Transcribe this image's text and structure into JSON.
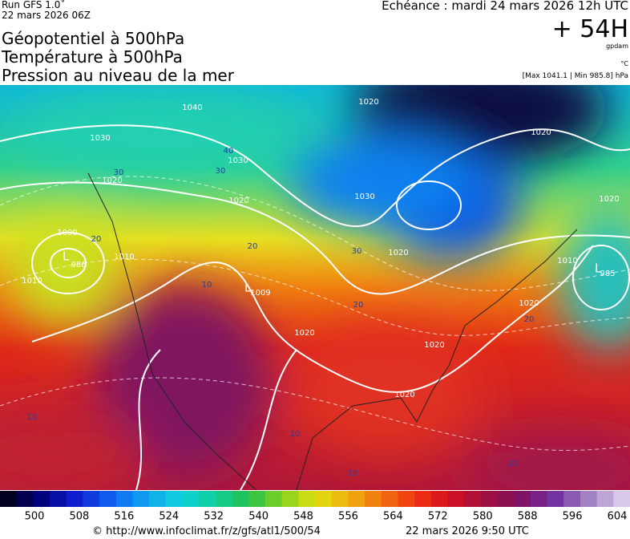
{
  "header": {
    "run": "Run GFS 1.0˚",
    "run_date": "22 mars 2026 06Z",
    "titles": [
      "Géopotentiel à 500hPa",
      "Température à 500hPa",
      "Pression au niveau de la mer"
    ],
    "valid_time": "Echéance : mardi 24 mars 2026 12h UTC",
    "lead": "+ 54H",
    "unit_geo": "gpdam",
    "unit_temp": "°C",
    "pressure_range": "[Max 1041.1 | Min 985.8] hPa"
  },
  "map": {
    "pressure_labels": [
      "1040",
      "1030",
      "1030",
      "1020",
      "1020",
      "1000",
      "986",
      "1010",
      "1010",
      "1009",
      "1020",
      "1020",
      "1030",
      "1020",
      "1020",
      "1020",
      "1010",
      "985",
      "1020",
      "1020",
      "1020"
    ],
    "pressure_centers": [
      "L",
      "L",
      "L"
    ],
    "temperature_labels": [
      "40",
      "30",
      "30",
      "20",
      "10",
      "20",
      "30",
      "20",
      "20",
      "10",
      "10",
      "10",
      "10"
    ]
  },
  "colorbar": {
    "ticks": [
      500,
      508,
      516,
      524,
      532,
      540,
      548,
      556,
      564,
      572,
      580,
      588,
      596,
      604
    ]
  },
  "footer": {
    "source": "© http://www.infoclimat.fr/z/gfs/atl1/500/54",
    "generated": "22 mars 2026  9:50 UTC"
  }
}
